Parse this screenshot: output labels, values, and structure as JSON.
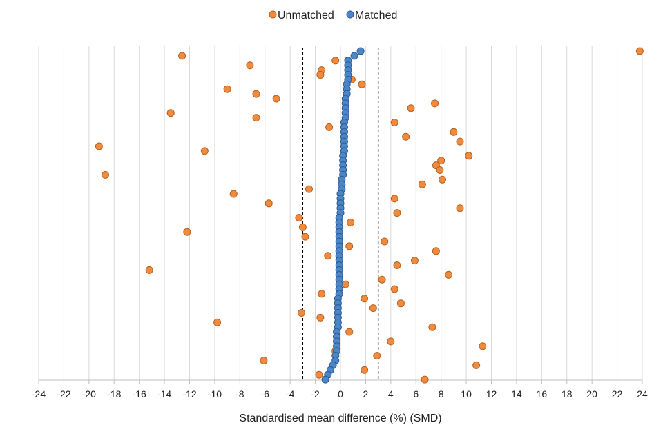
{
  "chart_data": {
    "type": "scatter",
    "title": "",
    "xlabel": "Standardised mean difference (%) (SMD)",
    "ylabel": "",
    "xlim": [
      -24,
      24
    ],
    "xticks": [
      -24,
      -22,
      -20,
      -18,
      -16,
      -14,
      -12,
      -10,
      -8,
      -6,
      -4,
      -2,
      0,
      2,
      4,
      6,
      8,
      10,
      12,
      14,
      16,
      18,
      20,
      22,
      24
    ],
    "grid": "vertical",
    "legend_position": "top-center",
    "reference_lines": [
      -3,
      3
    ],
    "colors": {
      "unmatched": "#f08a3e",
      "unmatched_edge": "#b8601c",
      "matched": "#4d86c6",
      "matched_edge": "#2a5a92",
      "grid": "#d9d9d9"
    },
    "series": [
      {
        "name": "Unmatched",
        "points": [
          {
            "x": 23.8,
            "y": 1
          },
          {
            "x": -12.6,
            "y": 2
          },
          {
            "x": -0.4,
            "y": 3
          },
          {
            "x": -7.2,
            "y": 4
          },
          {
            "x": -1.5,
            "y": 5
          },
          {
            "x": -1.6,
            "y": 6
          },
          {
            "x": 0.9,
            "y": 7
          },
          {
            "x": 1.7,
            "y": 8
          },
          {
            "x": -9.0,
            "y": 9
          },
          {
            "x": -6.7,
            "y": 10
          },
          {
            "x": -5.1,
            "y": 11
          },
          {
            "x": 7.5,
            "y": 12
          },
          {
            "x": 5.6,
            "y": 13
          },
          {
            "x": -13.5,
            "y": 14
          },
          {
            "x": -6.7,
            "y": 15
          },
          {
            "x": 4.3,
            "y": 16
          },
          {
            "x": -0.9,
            "y": 17
          },
          {
            "x": 9.0,
            "y": 18
          },
          {
            "x": 5.2,
            "y": 19
          },
          {
            "x": 9.5,
            "y": 20
          },
          {
            "x": -19.2,
            "y": 21
          },
          {
            "x": -10.8,
            "y": 22
          },
          {
            "x": 10.2,
            "y": 23
          },
          {
            "x": 8.0,
            "y": 24
          },
          {
            "x": 7.6,
            "y": 25
          },
          {
            "x": 7.9,
            "y": 26
          },
          {
            "x": -18.7,
            "y": 27
          },
          {
            "x": 8.1,
            "y": 28
          },
          {
            "x": 6.5,
            "y": 29
          },
          {
            "x": -2.5,
            "y": 30
          },
          {
            "x": -8.5,
            "y": 31
          },
          {
            "x": 4.3,
            "y": 32
          },
          {
            "x": -5.7,
            "y": 33
          },
          {
            "x": 9.5,
            "y": 34
          },
          {
            "x": 4.5,
            "y": 35
          },
          {
            "x": -3.3,
            "y": 36
          },
          {
            "x": 0.8,
            "y": 37
          },
          {
            "x": -3.0,
            "y": 38
          },
          {
            "x": -12.2,
            "y": 39
          },
          {
            "x": -2.8,
            "y": 40
          },
          {
            "x": 3.5,
            "y": 41
          },
          {
            "x": 0.7,
            "y": 42
          },
          {
            "x": 7.6,
            "y": 43
          },
          {
            "x": -1.0,
            "y": 44
          },
          {
            "x": 5.9,
            "y": 45
          },
          {
            "x": 4.5,
            "y": 46
          },
          {
            "x": -15.2,
            "y": 47
          },
          {
            "x": 8.6,
            "y": 48
          },
          {
            "x": 3.3,
            "y": 49
          },
          {
            "x": 0.4,
            "y": 50
          },
          {
            "x": 4.3,
            "y": 51
          },
          {
            "x": -1.5,
            "y": 52
          },
          {
            "x": 1.9,
            "y": 53
          },
          {
            "x": 4.8,
            "y": 54
          },
          {
            "x": 2.6,
            "y": 55
          },
          {
            "x": -3.1,
            "y": 56
          },
          {
            "x": -1.6,
            "y": 57
          },
          {
            "x": -9.8,
            "y": 58
          },
          {
            "x": 7.3,
            "y": 59
          },
          {
            "x": 0.7,
            "y": 60
          },
          {
            "x": -0.3,
            "y": 61
          },
          {
            "x": 4.0,
            "y": 62
          },
          {
            "x": 11.3,
            "y": 63
          },
          {
            "x": -0.4,
            "y": 64
          },
          {
            "x": 2.9,
            "y": 65
          },
          {
            "x": -6.1,
            "y": 66
          },
          {
            "x": 10.8,
            "y": 67
          },
          {
            "x": 1.9,
            "y": 68
          },
          {
            "x": -1.7,
            "y": 69
          },
          {
            "x": 6.7,
            "y": 70
          }
        ]
      },
      {
        "name": "Matched",
        "points": [
          {
            "x": 1.6,
            "y": 1
          },
          {
            "x": 1.1,
            "y": 2
          },
          {
            "x": 0.6,
            "y": 3
          },
          {
            "x": 0.6,
            "y": 4
          },
          {
            "x": 0.6,
            "y": 5
          },
          {
            "x": 0.6,
            "y": 6
          },
          {
            "x": 0.6,
            "y": 7
          },
          {
            "x": 0.5,
            "y": 8
          },
          {
            "x": 0.5,
            "y": 9
          },
          {
            "x": 0.5,
            "y": 10
          },
          {
            "x": 0.4,
            "y": 11
          },
          {
            "x": 0.4,
            "y": 12
          },
          {
            "x": 0.4,
            "y": 13
          },
          {
            "x": 0.4,
            "y": 14
          },
          {
            "x": 0.4,
            "y": 15
          },
          {
            "x": 0.3,
            "y": 16
          },
          {
            "x": 0.3,
            "y": 17
          },
          {
            "x": 0.3,
            "y": 18
          },
          {
            "x": 0.3,
            "y": 19
          },
          {
            "x": 0.3,
            "y": 20
          },
          {
            "x": 0.3,
            "y": 21
          },
          {
            "x": 0.3,
            "y": 22
          },
          {
            "x": 0.2,
            "y": 23
          },
          {
            "x": 0.2,
            "y": 24
          },
          {
            "x": 0.2,
            "y": 25
          },
          {
            "x": 0.2,
            "y": 26
          },
          {
            "x": 0.2,
            "y": 27
          },
          {
            "x": 0.1,
            "y": 28
          },
          {
            "x": 0.1,
            "y": 29
          },
          {
            "x": 0.1,
            "y": 30
          },
          {
            "x": 0.0,
            "y": 31
          },
          {
            "x": 0.0,
            "y": 32
          },
          {
            "x": 0.0,
            "y": 33
          },
          {
            "x": 0.0,
            "y": 34
          },
          {
            "x": 0.0,
            "y": 35
          },
          {
            "x": -0.1,
            "y": 36
          },
          {
            "x": -0.1,
            "y": 37
          },
          {
            "x": -0.1,
            "y": 38
          },
          {
            "x": -0.1,
            "y": 39
          },
          {
            "x": -0.1,
            "y": 40
          },
          {
            "x": -0.1,
            "y": 41
          },
          {
            "x": -0.1,
            "y": 42
          },
          {
            "x": -0.1,
            "y": 43
          },
          {
            "x": -0.1,
            "y": 44
          },
          {
            "x": -0.1,
            "y": 45
          },
          {
            "x": -0.1,
            "y": 46
          },
          {
            "x": -0.1,
            "y": 47
          },
          {
            "x": -0.1,
            "y": 48
          },
          {
            "x": -0.1,
            "y": 49
          },
          {
            "x": -0.1,
            "y": 50
          },
          {
            "x": -0.1,
            "y": 51
          },
          {
            "x": -0.1,
            "y": 52
          },
          {
            "x": -0.2,
            "y": 53
          },
          {
            "x": -0.2,
            "y": 54
          },
          {
            "x": -0.2,
            "y": 55
          },
          {
            "x": -0.2,
            "y": 56
          },
          {
            "x": -0.2,
            "y": 57
          },
          {
            "x": -0.2,
            "y": 58
          },
          {
            "x": -0.2,
            "y": 59
          },
          {
            "x": -0.3,
            "y": 60
          },
          {
            "x": -0.3,
            "y": 61
          },
          {
            "x": -0.3,
            "y": 62
          },
          {
            "x": -0.3,
            "y": 63
          },
          {
            "x": -0.3,
            "y": 64
          },
          {
            "x": -0.4,
            "y": 65
          },
          {
            "x": -0.4,
            "y": 66
          },
          {
            "x": -0.6,
            "y": 67
          },
          {
            "x": -0.8,
            "y": 68
          },
          {
            "x": -1.0,
            "y": 69
          },
          {
            "x": -1.2,
            "y": 70
          }
        ]
      }
    ]
  }
}
